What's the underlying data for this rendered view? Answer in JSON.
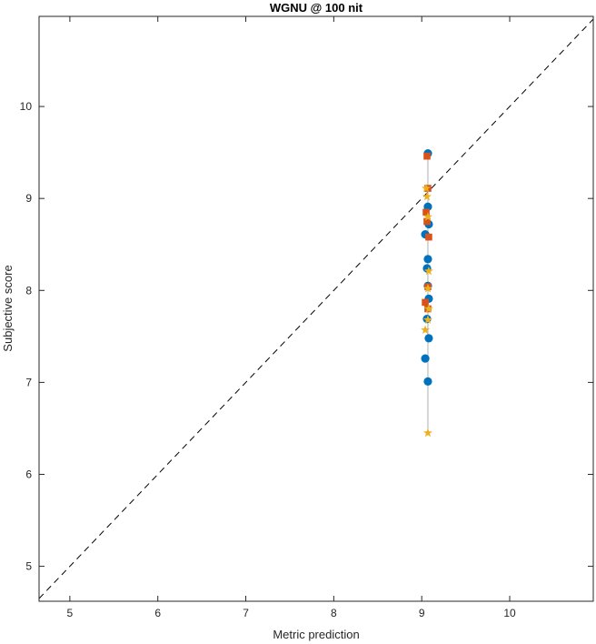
{
  "chart_data": {
    "type": "scatter",
    "title": "WGNU @ 100 nit",
    "xlabel": "Metric prediction",
    "ylabel": "Subjective score",
    "xlim": [
      4.65,
      10.95
    ],
    "ylim": [
      4.62,
      10.98
    ],
    "xticks": [
      5,
      6,
      7,
      8,
      9,
      10
    ],
    "yticks": [
      5,
      6,
      7,
      8,
      9,
      10
    ],
    "grid": false,
    "reference_line": {
      "from": [
        4.62,
        4.62
      ],
      "to": [
        10.98,
        10.98
      ],
      "style": "dashed",
      "color": "#000000"
    },
    "colors": {
      "circle": "#0072BD",
      "square": "#D95319",
      "star": "#EDB120",
      "connector": "#b0b0b0"
    },
    "connector": {
      "x": 9.07,
      "y": [
        6.45,
        9.49
      ]
    },
    "series": [
      {
        "marker": "circle",
        "points": [
          [
            9.07,
            9.49
          ],
          [
            9.07,
            8.91
          ],
          [
            9.08,
            8.72
          ],
          [
            9.04,
            8.61
          ],
          [
            9.07,
            8.34
          ],
          [
            9.06,
            8.24
          ],
          [
            9.07,
            8.05
          ],
          [
            9.08,
            7.91
          ],
          [
            9.06,
            7.69
          ],
          [
            9.08,
            7.48
          ],
          [
            9.04,
            7.26
          ],
          [
            9.07,
            7.01
          ]
        ]
      },
      {
        "marker": "square",
        "points": [
          [
            9.06,
            9.46
          ],
          [
            9.07,
            9.11
          ],
          [
            9.05,
            8.85
          ],
          [
            9.06,
            8.75
          ],
          [
            9.08,
            8.58
          ],
          [
            9.07,
            8.04
          ],
          [
            9.04,
            7.87
          ],
          [
            9.07,
            7.8
          ]
        ]
      },
      {
        "marker": "star",
        "points": [
          [
            9.05,
            9.11
          ],
          [
            9.06,
            9.02
          ],
          [
            9.07,
            8.8
          ],
          [
            9.08,
            8.21
          ],
          [
            9.07,
            8.02
          ],
          [
            9.08,
            7.8
          ],
          [
            9.07,
            7.68
          ],
          [
            9.04,
            7.57
          ],
          [
            9.07,
            6.45
          ]
        ]
      }
    ]
  }
}
